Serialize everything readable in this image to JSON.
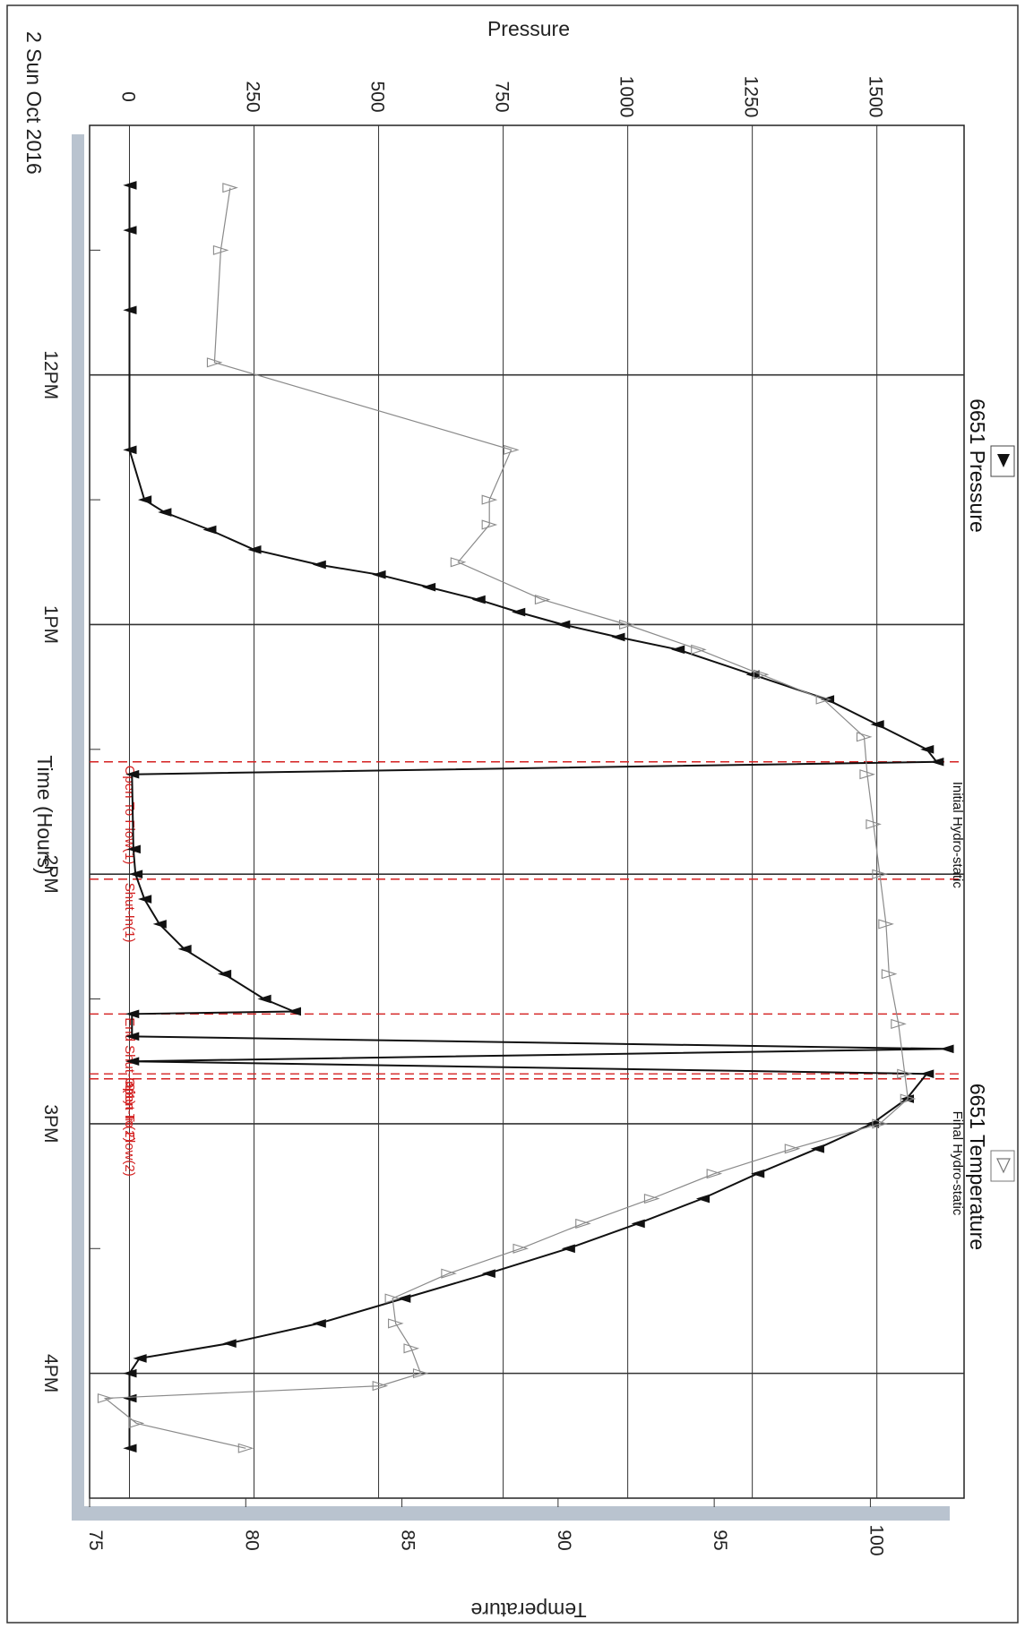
{
  "chart_data": {
    "type": "line",
    "date_label": "2 Sun Oct 2016",
    "x_axis": {
      "label": "Time (Hours)",
      "ticks": [
        {
          "value": 12.0,
          "label": "12PM"
        },
        {
          "value": 13.0,
          "label": "1PM"
        },
        {
          "value": 14.0,
          "label": "2PM"
        },
        {
          "value": 15.0,
          "label": "3PM"
        },
        {
          "value": 16.0,
          "label": "4PM"
        }
      ],
      "range": [
        11.0,
        16.5
      ]
    },
    "y_axis_pressure": {
      "label": "Pressure",
      "ticks": [
        "0",
        "250",
        "500",
        "750",
        "1000",
        "1250",
        "1500"
      ],
      "range": [
        -80,
        1675
      ]
    },
    "y_axis_temperature": {
      "label": "Temperature",
      "ticks": [
        "75",
        "80",
        "85",
        "90",
        "95",
        "100"
      ],
      "range": [
        75,
        103
      ]
    },
    "grid": true,
    "series": [
      {
        "name": "6651 Pressure",
        "axis": "pressure",
        "color": "#111111",
        "marker": "filled-triangle",
        "points": [
          [
            11.24,
            0
          ],
          [
            11.42,
            0
          ],
          [
            11.74,
            0
          ],
          [
            12.3,
            0
          ],
          [
            12.5,
            30
          ],
          [
            12.55,
            70
          ],
          [
            12.62,
            160
          ],
          [
            12.7,
            250
          ],
          [
            12.76,
            380
          ],
          [
            12.8,
            500
          ],
          [
            12.85,
            600
          ],
          [
            12.9,
            700
          ],
          [
            12.95,
            780
          ],
          [
            13.0,
            870
          ],
          [
            13.05,
            980
          ],
          [
            13.1,
            1100
          ],
          [
            13.2,
            1250
          ],
          [
            13.3,
            1400
          ],
          [
            13.4,
            1500
          ],
          [
            13.5,
            1600
          ],
          [
            13.55,
            1620
          ],
          [
            13.6,
            5
          ],
          [
            13.9,
            8
          ],
          [
            14.0,
            12
          ],
          [
            14.1,
            30
          ],
          [
            14.2,
            60
          ],
          [
            14.3,
            110
          ],
          [
            14.4,
            190
          ],
          [
            14.5,
            270
          ],
          [
            14.55,
            330
          ],
          [
            14.56,
            5
          ],
          [
            14.65,
            5
          ],
          [
            14.7,
            1640
          ],
          [
            14.75,
            5
          ],
          [
            14.8,
            1600
          ],
          [
            14.9,
            1560
          ],
          [
            15.0,
            1490
          ],
          [
            15.1,
            1380
          ],
          [
            15.2,
            1260
          ],
          [
            15.3,
            1150
          ],
          [
            15.4,
            1020
          ],
          [
            15.5,
            880
          ],
          [
            15.6,
            720
          ],
          [
            15.7,
            550
          ],
          [
            15.8,
            380
          ],
          [
            15.88,
            200
          ],
          [
            15.94,
            20
          ],
          [
            16.0,
            0
          ],
          [
            16.1,
            0
          ],
          [
            16.3,
            0
          ]
        ]
      },
      {
        "name": "6651 Temperature",
        "axis": "temperature",
        "color": "#8a8a8a",
        "marker": "open-triangle",
        "points": [
          [
            11.25,
            79.5
          ],
          [
            11.5,
            79.2
          ],
          [
            11.95,
            79.0
          ],
          [
            12.3,
            88.5
          ],
          [
            12.5,
            87.8
          ],
          [
            12.6,
            87.8
          ],
          [
            12.75,
            86.8
          ],
          [
            12.9,
            89.5
          ],
          [
            13.0,
            92.2
          ],
          [
            13.1,
            94.5
          ],
          [
            13.2,
            96.5
          ],
          [
            13.3,
            98.5
          ],
          [
            13.45,
            99.8
          ],
          [
            13.6,
            99.9
          ],
          [
            13.8,
            100.1
          ],
          [
            14.0,
            100.3
          ],
          [
            14.2,
            100.5
          ],
          [
            14.4,
            100.6
          ],
          [
            14.6,
            100.9
          ],
          [
            14.8,
            101.1
          ],
          [
            14.9,
            101.2
          ],
          [
            15.0,
            100.3
          ],
          [
            15.1,
            97.5
          ],
          [
            15.2,
            95.0
          ],
          [
            15.3,
            93.0
          ],
          [
            15.4,
            90.8
          ],
          [
            15.5,
            88.8
          ],
          [
            15.6,
            86.5
          ],
          [
            15.7,
            84.7
          ],
          [
            15.8,
            84.8
          ],
          [
            15.9,
            85.3
          ],
          [
            16.0,
            85.6
          ],
          [
            16.05,
            84.3
          ],
          [
            16.1,
            75.5
          ],
          [
            16.2,
            76.5
          ],
          [
            16.3,
            80.0
          ]
        ]
      }
    ],
    "events": [
      {
        "time": 13.55,
        "label": "Open To Flow(1)",
        "color": "#d42020"
      },
      {
        "time": 14.02,
        "label": "Shut-In(1)",
        "color": "#d42020"
      },
      {
        "time": 14.56,
        "label": "End Shut-In(1)",
        "color": "#d42020"
      },
      {
        "time": 14.8,
        "label": "Open To Flow(2)",
        "color": "#d42020"
      },
      {
        "time": 14.82,
        "label": "Shut-In(2)",
        "color": "#d42020"
      }
    ],
    "annotations": [
      {
        "time": 13.6,
        "label": "Initial Hydro-static"
      },
      {
        "time": 14.92,
        "label": "Final Hydro-static"
      }
    ]
  }
}
